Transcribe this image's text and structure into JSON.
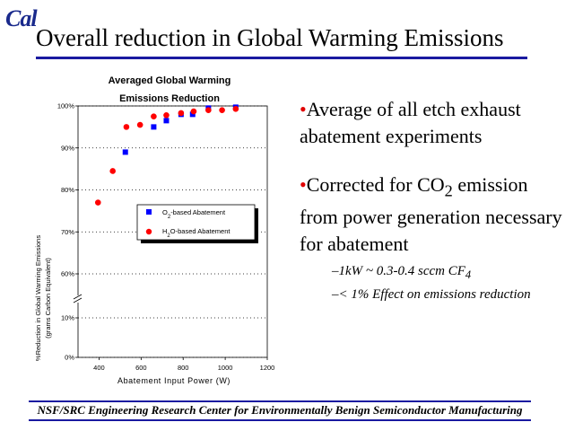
{
  "logo": "Cal",
  "slide_title": "Overall reduction in Global Warming Emissions",
  "bullets": [
    {
      "text": "Average of all etch exhaust abatement experiments"
    },
    {
      "text_main": "Corrected for CO",
      "text_sub": "2",
      "text_rest": " emission from power generation necessary for abatement"
    }
  ],
  "sub_bullets": [
    {
      "text": "1kW ~ 0.3-0.4 sccm CF",
      "sub": "4"
    },
    {
      "text": "< 1% Effect on emissions reduction",
      "sub": ""
    }
  ],
  "footer": "NSF/SRC Engineering Research Center for Environmentally Benign Semiconductor Manufacturing",
  "chart_data": {
    "type": "scatter",
    "title_line1": "Averaged Global Warming",
    "title_line2": "Emissions Reduction",
    "xlabel": "Abatement Input Power (W)",
    "ylabel_line1": "%Reduction in Global Warming Emissions",
    "ylabel_line2": "(grams Carbon Equivalent)",
    "xlim": [
      300,
      1200
    ],
    "xticks": [
      400,
      600,
      800,
      1000,
      1200
    ],
    "ylim_upper": [
      60,
      100
    ],
    "ylim_lower": [
      0,
      10
    ],
    "yticks_upper": [
      60,
      70,
      80,
      90,
      100
    ],
    "yticks_lower": [
      0,
      10
    ],
    "ytick_labels": {
      "0": "0%",
      "10": "10%",
      "60": "60%",
      "70": "70%",
      "80": "80%",
      "90": "90%",
      "100": "100%"
    },
    "axis_break": true,
    "grid": true,
    "legend_position": "center-right",
    "series": [
      {
        "name_main": "O",
        "name_sub": "2",
        "name_rest": "-based Abatement",
        "marker": "square",
        "color": "#0000ff",
        "x": [
          525,
          660,
          720,
          790,
          845,
          920,
          1050
        ],
        "y": [
          89,
          95,
          96.5,
          98,
          98,
          99.5,
          99.7
        ]
      },
      {
        "name_main": "H",
        "name_sub": "2",
        "name_rest": "O-based Abatement",
        "marker": "circle",
        "color": "#ff0000",
        "x": [
          395,
          465,
          530,
          595,
          660,
          720,
          790,
          850,
          920,
          985,
          1050
        ],
        "y": [
          77,
          84.5,
          95,
          95.5,
          97.5,
          97.8,
          98.3,
          98.7,
          99,
          99,
          99.3
        ]
      }
    ]
  }
}
